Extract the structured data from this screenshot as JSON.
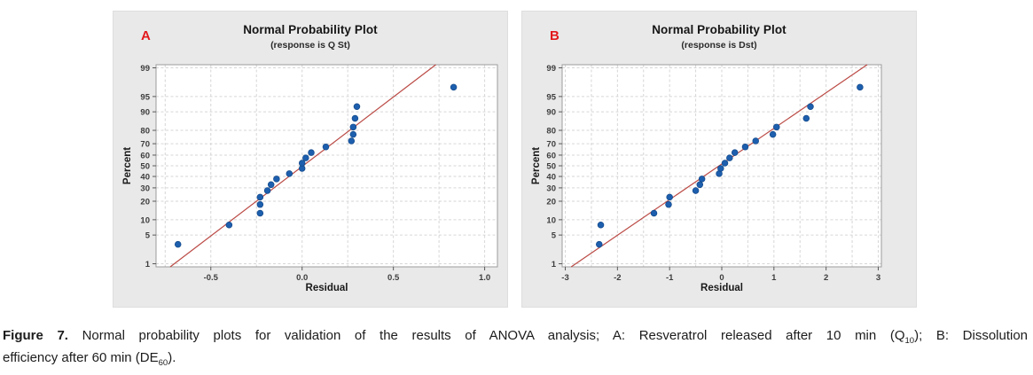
{
  "page": {
    "background": "#ffffff"
  },
  "caption": {
    "figure_label": "Figure 7.",
    "line1_text": "Normal probability plots for validation of the results of ANOVA analysis; A: Resveratrol released after 10 min (Q",
    "line1_sub": "10",
    "line1_after": "); B: Dissolution",
    "line2_text": "efficiency after 60 min (DE",
    "line2_sub": "60",
    "line2_after": ")."
  },
  "chart_data": [
    {
      "type": "scatter",
      "panel_label": "A",
      "panel_label_color": "#e2181b",
      "title": "Normal Probability Plot",
      "subtitle": "(response is Q St)",
      "xlabel": "Residual",
      "ylabel": "Percent",
      "y_scale": "normal-probability-percent",
      "xlim": [
        -0.8,
        1.07
      ],
      "ylim_probit": [
        -2.4,
        2.4
      ],
      "x_tick_values": [
        -0.5,
        0.0,
        0.5,
        1.0
      ],
      "x_tick_labels": [
        "-0.5",
        "0.0",
        "0.5",
        "1.0"
      ],
      "x_gridlines": [
        -0.75,
        -0.5,
        -0.25,
        0.0,
        0.25,
        0.5,
        0.75,
        1.0
      ],
      "y_ticks": [
        1,
        5,
        10,
        20,
        30,
        40,
        50,
        60,
        70,
        80,
        90,
        95,
        99
      ],
      "grid_color": "#d6d6d6",
      "border_color": "#9c9c9c",
      "point_color": "#1d5fae",
      "point_stroke": "#14498a",
      "fit_line": {
        "x_at_1_percent": -0.7,
        "x_at_99_percent": 0.71,
        "color": "#bb4a45"
      },
      "points": [
        [
          -0.68,
          3.1
        ],
        [
          -0.4,
          8.0
        ],
        [
          -0.23,
          13.0
        ],
        [
          -0.23,
          17.9
        ],
        [
          -0.23,
          22.8
        ],
        [
          -0.19,
          27.8
        ],
        [
          -0.17,
          32.7
        ],
        [
          -0.14,
          37.7
        ],
        [
          -0.07,
          42.6
        ],
        [
          0.0,
          47.5
        ],
        [
          0.0,
          52.5
        ],
        [
          0.02,
          57.4
        ],
        [
          0.05,
          62.3
        ],
        [
          0.13,
          67.3
        ],
        [
          0.27,
          72.2
        ],
        [
          0.28,
          77.2
        ],
        [
          0.28,
          82.1
        ],
        [
          0.29,
          87.0
        ],
        [
          0.3,
          92.0
        ],
        [
          0.83,
          96.9
        ]
      ]
    },
    {
      "type": "scatter",
      "panel_label": "B",
      "panel_label_color": "#e2181b",
      "title": "Normal Probability Plot",
      "subtitle": "(response is Dst)",
      "xlabel": "Residual",
      "ylabel": "Percent",
      "y_scale": "normal-probability-percent",
      "xlim": [
        -3.06,
        3.06
      ],
      "ylim_probit": [
        -2.4,
        2.4
      ],
      "x_tick_values": [
        -3,
        -2,
        -1,
        0,
        1,
        2,
        3
      ],
      "x_tick_labels": [
        "-3",
        "-2",
        "-1",
        "0",
        "1",
        "2",
        "3"
      ],
      "x_gridlines": [
        -3,
        -2.5,
        -2,
        -1.5,
        -1,
        -0.5,
        0,
        0.5,
        1,
        1.5,
        2,
        2.5,
        3
      ],
      "y_ticks": [
        1,
        5,
        10,
        20,
        30,
        40,
        50,
        60,
        70,
        80,
        90,
        95,
        99
      ],
      "grid_color": "#d6d6d6",
      "border_color": "#9c9c9c",
      "point_color": "#1d5fae",
      "point_stroke": "#14498a",
      "fit_line": {
        "x_at_1_percent": -2.8,
        "x_at_99_percent": 2.7,
        "color": "#bb4a45"
      },
      "points": [
        [
          -2.35,
          3.1
        ],
        [
          -2.32,
          8.0
        ],
        [
          -1.3,
          13.0
        ],
        [
          -1.02,
          17.9
        ],
        [
          -1.0,
          22.8
        ],
        [
          -0.5,
          27.8
        ],
        [
          -0.42,
          32.7
        ],
        [
          -0.38,
          37.7
        ],
        [
          -0.05,
          42.6
        ],
        [
          -0.02,
          47.5
        ],
        [
          0.06,
          52.5
        ],
        [
          0.15,
          57.4
        ],
        [
          0.25,
          62.3
        ],
        [
          0.45,
          67.3
        ],
        [
          0.65,
          72.2
        ],
        [
          0.98,
          77.2
        ],
        [
          1.05,
          82.1
        ],
        [
          1.62,
          87.0
        ],
        [
          1.7,
          92.0
        ],
        [
          2.65,
          96.9
        ]
      ]
    }
  ]
}
